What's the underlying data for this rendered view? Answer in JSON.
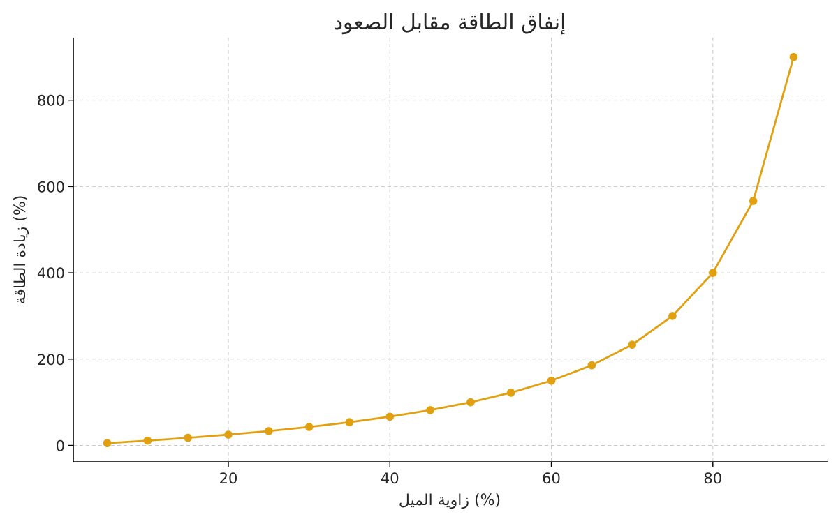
{
  "chart_data": {
    "type": "line",
    "title": "إنفاق الطاقة مقابل الصعود",
    "xlabel": "زاوية الميل (%)",
    "ylabel": "زيادة الطاقة (%)",
    "xlim": [
      0.8,
      94.2
    ],
    "ylim": [
      -38,
      945
    ],
    "xticks": [
      20,
      40,
      60,
      80
    ],
    "yticks": [
      0,
      200,
      400,
      600,
      800
    ],
    "grid": true,
    "legend": "none",
    "color": "#E0A010",
    "series": [
      {
        "x": [
          5,
          10,
          15,
          20,
          25,
          30,
          35,
          40,
          45,
          50,
          55,
          60,
          65,
          70,
          75,
          80,
          85,
          90
        ],
        "y": [
          5.3,
          11.1,
          17.6,
          25,
          33.3,
          42.9,
          53.8,
          66.7,
          81.8,
          100,
          122.2,
          150,
          185.7,
          233.3,
          300,
          400,
          566.7,
          900
        ]
      }
    ]
  }
}
